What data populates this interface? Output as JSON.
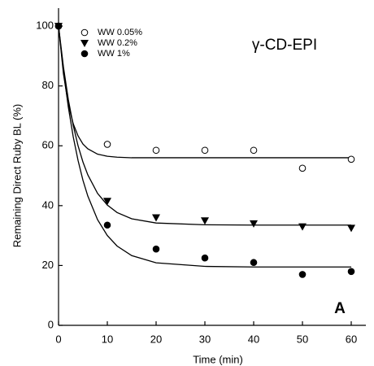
{
  "chart_data": {
    "type": "scatter",
    "title": "γ-CD-EPI",
    "annotation": "A",
    "x_label": "Time (min)",
    "y_label": "Remaining Direct Ruby BL (%)",
    "x": [
      0,
      10,
      20,
      30,
      40,
      50,
      60
    ],
    "series": [
      {
        "name": "WW 0.05%",
        "color": "#000000",
        "marker": "open-circle",
        "values": [
          100,
          60.5,
          58.5,
          58.5,
          58.5,
          52.5,
          55.5
        ]
      },
      {
        "name": "WW 0.2%",
        "color": "#000000",
        "marker": "triangle-down",
        "values": [
          100,
          41.5,
          36,
          35,
          34,
          33,
          32.5
        ]
      },
      {
        "name": "WW 1%",
        "color": "#000000",
        "marker": "filled-circle",
        "values": [
          100,
          33.5,
          25.5,
          22.5,
          21,
          17,
          18
        ]
      }
    ],
    "fits": [
      {
        "color": "#000000",
        "x": [
          0,
          1,
          2,
          3,
          4,
          5,
          6,
          8,
          10,
          12,
          15,
          20,
          30,
          40,
          50,
          60
        ],
        "values": [
          100,
          84.1,
          73.9,
          67.4,
          63.3,
          60.6,
          59.0,
          57.2,
          56.5,
          56.2,
          56.0,
          56,
          56,
          56,
          56,
          56
        ]
      },
      {
        "color": "#000000",
        "x": [
          0,
          1,
          2,
          3,
          4,
          5,
          6,
          8,
          10,
          12,
          15,
          20,
          30,
          40,
          50,
          60
        ],
        "values": [
          100,
          86.4,
          75.5,
          66.9,
          60.0,
          54.6,
          50.3,
          44.1,
          40.2,
          37.7,
          35.6,
          34.2,
          33.6,
          33.5,
          33.5,
          33.5
        ]
      },
      {
        "color": "#000000",
        "x": [
          0,
          1,
          2,
          3,
          4,
          5,
          6,
          8,
          10,
          12,
          15,
          20,
          30,
          40,
          50,
          60
        ],
        "values": [
          100,
          85.1,
          73.0,
          63.1,
          55.1,
          48.5,
          43.2,
          35.3,
          30.0,
          26.5,
          23.3,
          20.9,
          19.7,
          19.5,
          19.5,
          19.5
        ]
      }
    ],
    "xlim": [
      0,
      63
    ],
    "ylim": [
      0,
      106
    ],
    "xticks": [
      0,
      10,
      20,
      30,
      40,
      50,
      60
    ],
    "yticks": [
      0,
      20,
      40,
      60,
      80,
      100
    ],
    "legend": "upper left"
  }
}
